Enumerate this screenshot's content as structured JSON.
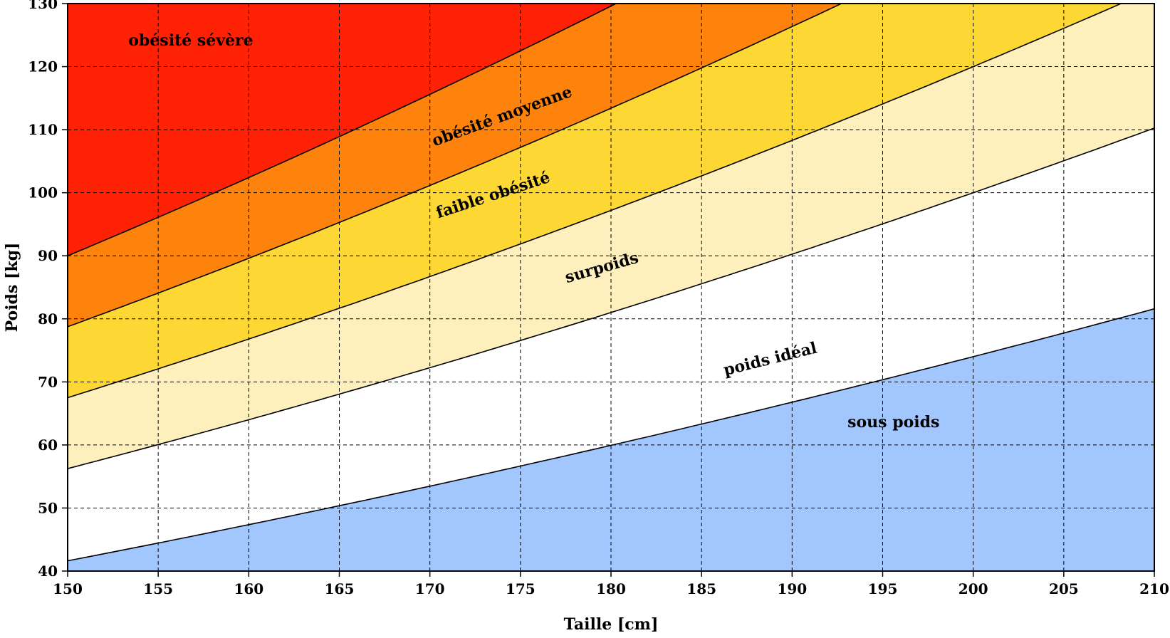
{
  "chart_data": {
    "type": "area",
    "xlabel": "Taille [cm]",
    "ylabel": "Poids [kg]",
    "xlim": [
      150,
      210
    ],
    "ylim": [
      40,
      130
    ],
    "xticks": [
      150,
      155,
      160,
      165,
      170,
      175,
      180,
      185,
      190,
      195,
      200,
      205,
      210
    ],
    "yticks": [
      40,
      50,
      60,
      70,
      80,
      90,
      100,
      110,
      120,
      130
    ],
    "grid": true,
    "bmi_boundaries": [
      18.5,
      25,
      30,
      35,
      40
    ],
    "bands": [
      {
        "name": "sous poids",
        "bmi_range": [
          0,
          18.5
        ],
        "color": "#a2c6fe"
      },
      {
        "name": "poids idéal",
        "bmi_range": [
          18.5,
          25
        ],
        "color": "#ffffff"
      },
      {
        "name": "surpoids",
        "bmi_range": [
          25,
          30
        ],
        "color": "#fef0bd"
      },
      {
        "name": "faible obésité",
        "bmi_range": [
          30,
          35
        ],
        "color": "#fdd733"
      },
      {
        "name": "obésité moyenne",
        "bmi_range": [
          35,
          40
        ],
        "color": "#fe830d"
      },
      {
        "name": "obésité sévère",
        "bmi_range": [
          40,
          1000
        ],
        "color": "#ff2106"
      }
    ],
    "labels": [
      {
        "text": "sous poids",
        "x": 195.6,
        "y": 63.5,
        "rotate": 0
      },
      {
        "text": "poids idéal",
        "x": 188.8,
        "y": 73.5,
        "rotate": -14
      },
      {
        "text": "surpoids",
        "x": 179.5,
        "y": 88.0,
        "rotate": -16
      },
      {
        "text": "faible obésité",
        "x": 173.5,
        "y": 99.5,
        "rotate": -18
      },
      {
        "text": "obésité moyenne",
        "x": 174.0,
        "y": 112.0,
        "rotate": -20
      },
      {
        "text": "obésité sévère",
        "x": 156.8,
        "y": 124.0,
        "rotate": 0
      }
    ]
  }
}
